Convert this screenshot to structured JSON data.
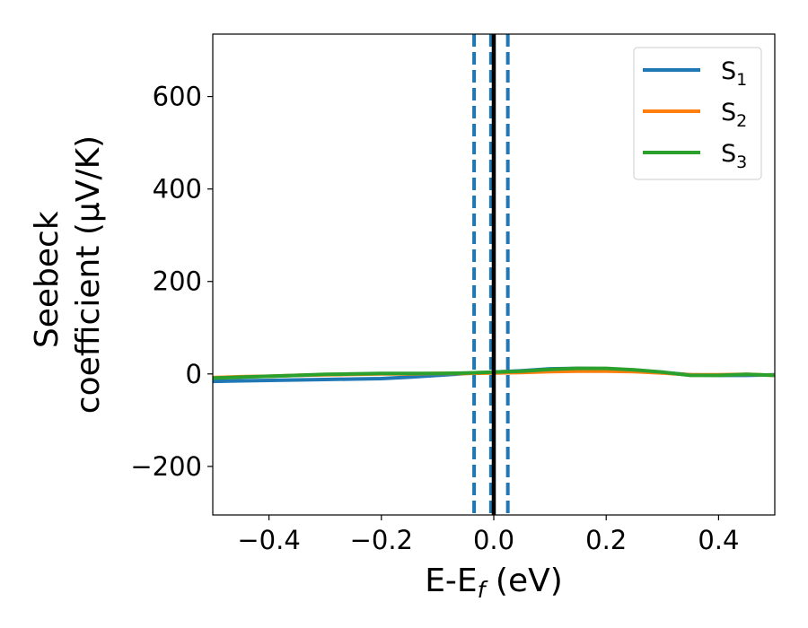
{
  "chart_data": {
    "type": "line",
    "title": "",
    "xlabel": "E-E_f (eV)",
    "xlabel_parts": {
      "base": "E-E",
      "sub": "f",
      "rest": " (eV)"
    },
    "ylabel": "Seebeck coefficient (μV/K)",
    "ylabel_lines": [
      "Seebeck",
      "coefficient  (μV/K)"
    ],
    "xlim": [
      -0.5,
      0.5
    ],
    "ylim": [
      -305,
      735
    ],
    "xticks": [
      -0.4,
      -0.2,
      0.0,
      0.2,
      0.4
    ],
    "xtick_labels": [
      "−0.4",
      "−0.2",
      "0.0",
      "0.2",
      "0.4"
    ],
    "yticks": [
      -200,
      0,
      200,
      400,
      600
    ],
    "ytick_labels": [
      "−200",
      "0",
      "200",
      "400",
      "600"
    ],
    "grid": false,
    "legend_position": "top-right",
    "vertical_lines": [
      {
        "x": -0.035,
        "style": "dashed",
        "color": "#1f77b4"
      },
      {
        "x": -0.005,
        "style": "dashed",
        "color": "#1f77b4"
      },
      {
        "x": 0.0,
        "style": "solid",
        "color": "#000000"
      },
      {
        "x": 0.025,
        "style": "dashed",
        "color": "#1f77b4"
      }
    ],
    "series": [
      {
        "name": "S_1",
        "base": "S",
        "sub": "1",
        "color": "#1f77b4",
        "x": [
          -0.5,
          -0.45,
          -0.4,
          -0.35,
          -0.3,
          -0.25,
          -0.2,
          -0.15,
          -0.1,
          -0.05,
          0.0,
          0.05,
          0.1,
          0.15,
          0.2,
          0.25,
          0.3,
          0.35,
          0.4,
          0.45,
          0.5
        ],
        "y": [
          -16,
          -15,
          -14,
          -13,
          -12,
          -11,
          -10,
          -7,
          -3,
          1,
          4,
          7,
          11,
          12,
          11,
          8,
          3,
          -2,
          -3,
          -3,
          -2
        ]
      },
      {
        "name": "S_2",
        "base": "S",
        "sub": "2",
        "color": "#ff7f0e",
        "x": [
          -0.5,
          -0.45,
          -0.4,
          -0.35,
          -0.3,
          -0.25,
          -0.2,
          -0.15,
          -0.1,
          -0.05,
          0.0,
          0.05,
          0.1,
          0.15,
          0.2,
          0.25,
          0.3,
          0.35,
          0.4,
          0.45,
          0.5
        ],
        "y": [
          -8,
          -6,
          -5,
          -3,
          -2,
          -1,
          0,
          0,
          1,
          1,
          2,
          3,
          5,
          6,
          6,
          5,
          2,
          -2,
          -2,
          -1,
          -3
        ]
      },
      {
        "name": "S_3",
        "base": "S",
        "sub": "3",
        "color": "#2ca02c",
        "x": [
          -0.5,
          -0.45,
          -0.4,
          -0.35,
          -0.3,
          -0.25,
          -0.2,
          -0.15,
          -0.1,
          -0.05,
          0.0,
          0.05,
          0.1,
          0.15,
          0.2,
          0.25,
          0.3,
          0.35,
          0.4,
          0.45,
          0.5
        ],
        "y": [
          -9,
          -7,
          -5,
          -3,
          -1,
          0,
          1,
          1,
          1,
          2,
          4,
          6,
          10,
          12,
          12,
          9,
          4,
          -3,
          -3,
          -1,
          -3
        ]
      }
    ]
  }
}
